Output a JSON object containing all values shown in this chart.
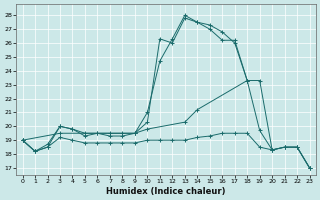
{
  "xlabel": "Humidex (Indice chaleur)",
  "bg_color": "#cce8e8",
  "line_color": "#1a6b6b",
  "xlim": [
    -0.5,
    23.5
  ],
  "ylim": [
    16.5,
    28.8
  ],
  "yticks": [
    17,
    18,
    19,
    20,
    21,
    22,
    23,
    24,
    25,
    26,
    27,
    28
  ],
  "xticks": [
    0,
    1,
    2,
    3,
    4,
    5,
    6,
    7,
    8,
    9,
    10,
    11,
    12,
    13,
    14,
    15,
    16,
    17,
    18,
    19,
    20,
    21,
    22,
    23
  ],
  "series": [
    {
      "x": [
        0,
        1,
        2,
        3,
        4,
        5,
        6,
        7,
        8,
        9,
        10,
        11,
        12,
        13,
        14,
        15,
        16,
        17,
        18,
        19,
        20,
        21,
        22,
        23
      ],
      "y": [
        19.0,
        18.2,
        18.5,
        20.0,
        19.8,
        19.5,
        19.5,
        19.5,
        19.5,
        19.5,
        21.0,
        24.7,
        26.3,
        28.0,
        27.5,
        27.3,
        26.8,
        26.0,
        23.3,
        19.7,
        18.3,
        18.5,
        18.5,
        17.0
      ]
    },
    {
      "x": [
        0,
        1,
        2,
        3,
        4,
        5,
        6,
        7,
        8,
        9,
        10,
        11,
        12,
        13,
        14,
        15,
        16,
        17,
        18
      ],
      "y": [
        19.0,
        18.2,
        18.7,
        20.0,
        19.8,
        19.3,
        19.5,
        19.3,
        19.3,
        19.5,
        20.3,
        26.3,
        26.0,
        27.8,
        27.5,
        27.0,
        26.2,
        26.2,
        23.3
      ]
    },
    {
      "x": [
        0,
        3,
        9,
        10,
        13,
        14,
        18,
        19,
        20,
        21,
        22,
        23
      ],
      "y": [
        19.0,
        19.5,
        19.5,
        19.8,
        20.3,
        21.2,
        23.3,
        23.3,
        18.3,
        18.5,
        18.5,
        17.0
      ]
    },
    {
      "x": [
        0,
        1,
        2,
        3,
        4,
        5,
        6,
        7,
        8,
        9,
        10,
        11,
        12,
        13,
        14,
        15,
        16,
        17,
        18,
        19,
        20,
        21,
        22,
        23
      ],
      "y": [
        19.0,
        18.2,
        18.5,
        19.2,
        19.0,
        18.8,
        18.8,
        18.8,
        18.8,
        18.8,
        19.0,
        19.0,
        19.0,
        19.0,
        19.2,
        19.3,
        19.5,
        19.5,
        19.5,
        18.5,
        18.3,
        18.5,
        18.5,
        17.0
      ]
    }
  ]
}
